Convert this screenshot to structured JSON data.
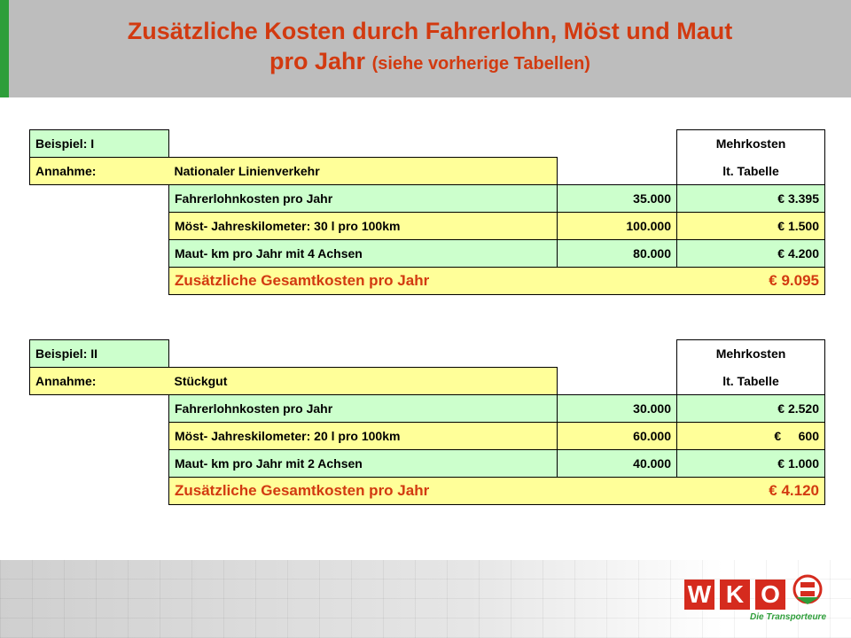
{
  "title": {
    "line1": "Zusätzliche Kosten durch Fahrerlohn, Möst und Maut",
    "line2_main": "pro Jahr",
    "line2_sub": "(siehe vorherige Tabellen)"
  },
  "tables": [
    {
      "beispiel": "Beispiel: I",
      "mehrkosten": "Mehrkosten",
      "annahme_label": "Annahme:",
      "annahme_value": "Nationaler Linienverkehr",
      "tabelle": "lt. Tabelle",
      "rows": [
        {
          "label": "Fahrerlohnkosten pro Jahr",
          "qty": "35.000",
          "cost": "€  3.395"
        },
        {
          "label": "Möst- Jahreskilometer: 30 l pro 100km",
          "qty": "100.000",
          "cost": "€  1.500"
        },
        {
          "label": "Maut- km pro Jahr mit 4 Achsen",
          "qty": "80.000",
          "cost": "€  4.200"
        }
      ],
      "total_label": "Zusätzliche Gesamtkosten pro Jahr",
      "total_value": "€  9.095"
    },
    {
      "beispiel": "Beispiel: II",
      "mehrkosten": "Mehrkosten",
      "annahme_label": "Annahme:",
      "annahme_value": "Stückgut",
      "tabelle": "lt. Tabelle",
      "rows": [
        {
          "label": "Fahrerlohnkosten pro Jahr",
          "qty": "30.000",
          "cost": "€  2.520"
        },
        {
          "label": "Möst- Jahreskilometer: 20 l pro 100km",
          "qty": "60.000",
          "cost": "€     600"
        },
        {
          "label": "Maut- km pro Jahr mit 2 Achsen",
          "qty": "40.000",
          "cost": "€  1.000"
        }
      ],
      "total_label": "Zusätzliche Gesamtkosten pro Jahr",
      "total_value": "€  4.120"
    }
  ],
  "logo": {
    "letters": [
      "W",
      "K",
      "O"
    ],
    "subtitle": "Die Transporteure"
  },
  "colors": {
    "title": "#d23a10",
    "yellow": "#ffff99",
    "green": "#ccffcc",
    "accent": "#2e9e3a",
    "logo_red": "#d52b1e"
  }
}
